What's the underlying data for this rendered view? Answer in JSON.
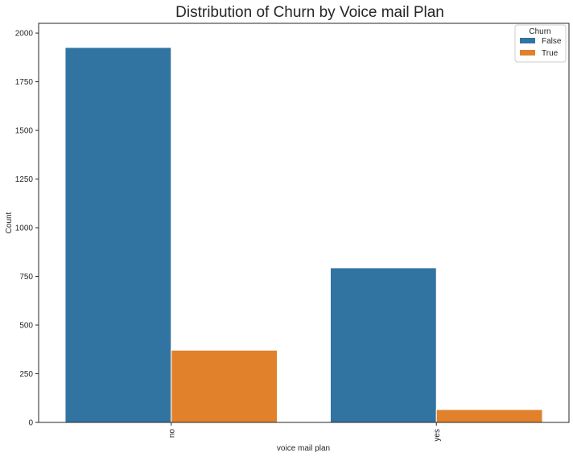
{
  "chart_data": {
    "type": "bar",
    "title": "Distribution of Churn by Voice mail Plan",
    "xlabel": "voice mail plan",
    "ylabel": "Count",
    "categories": [
      "no",
      "yes"
    ],
    "series": [
      {
        "name": "False",
        "color": "#3274a1",
        "values": [
          1926,
          794
        ]
      },
      {
        "name": "True",
        "color": "#e1812c",
        "values": [
          371,
          66
        ]
      }
    ],
    "ylim": [
      0,
      2050
    ],
    "yticks": [
      0,
      250,
      500,
      750,
      1000,
      1250,
      1500,
      1750,
      2000
    ],
    "legend": {
      "title": "Churn",
      "position": "top-right"
    },
    "grid": false
  }
}
